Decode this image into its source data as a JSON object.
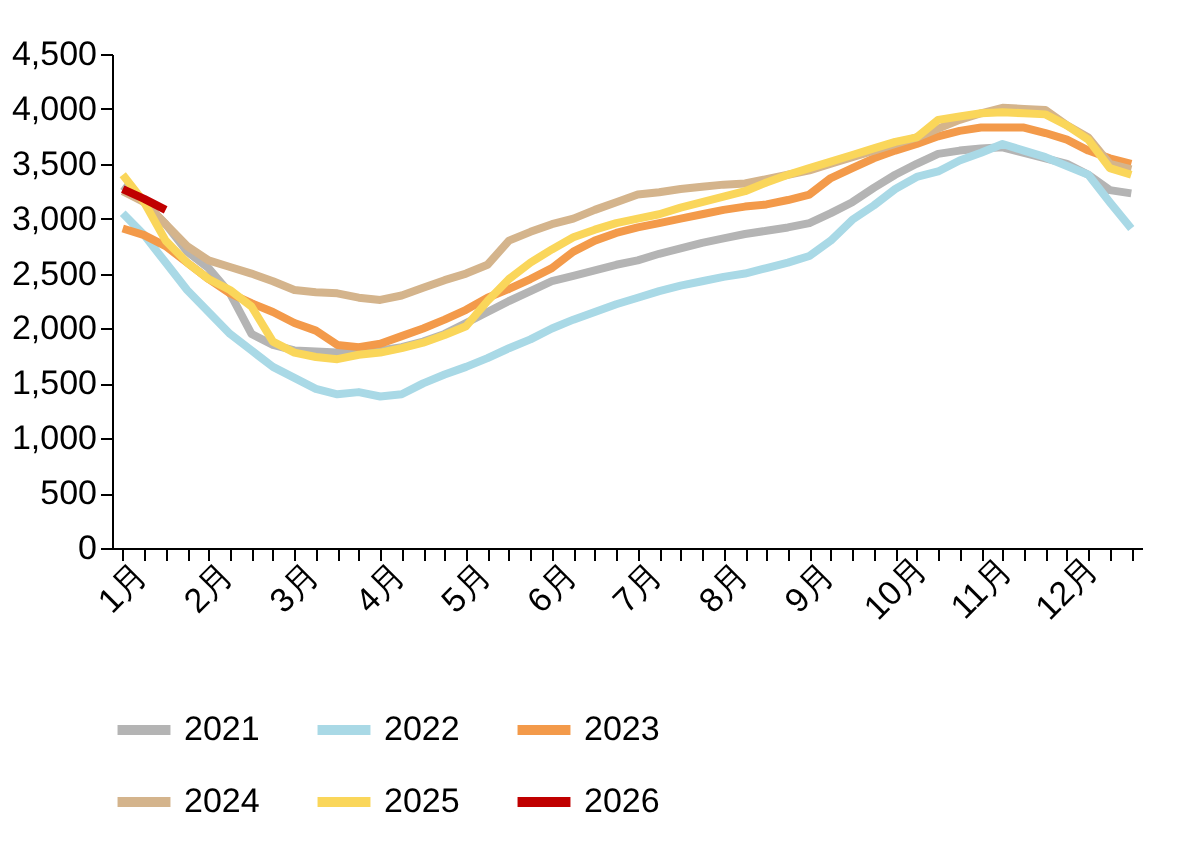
{
  "chart_data": {
    "type": "line",
    "categories": [
      "1月",
      null,
      null,
      null,
      "2月",
      null,
      null,
      null,
      "3月",
      null,
      null,
      null,
      "4月",
      null,
      null,
      null,
      "5月",
      null,
      null,
      null,
      "6月",
      null,
      null,
      null,
      "7月",
      null,
      null,
      null,
      "8月",
      null,
      null,
      null,
      "9月",
      null,
      null,
      null,
      "10月",
      null,
      null,
      null,
      "11月",
      null,
      null,
      null,
      "12月",
      null,
      null,
      null
    ],
    "ylim": [
      0,
      4500
    ],
    "yticks": [
      0,
      {
        "value": 500,
        "label": "500"
      },
      {
        "value": 1000,
        "label": "1,000"
      },
      {
        "value": 1500,
        "label": "1,500"
      },
      {
        "value": 2000,
        "label": "2,000"
      },
      {
        "value": 2500,
        "label": "2,500"
      },
      {
        "value": 3000,
        "label": "3,000"
      },
      {
        "value": 3500,
        "label": "3,500"
      },
      {
        "value": 4000,
        "label": "4,000"
      },
      {
        "value": 4500,
        "label": "4,500"
      }
    ],
    "grid": false,
    "legend": "bottom",
    "series": [
      {
        "name": "2021",
        "color": "#b4b4b4",
        "values": [
          3300,
          3150,
          2950,
          2700,
          2550,
          2320,
          1950,
          1850,
          1800,
          1790,
          1780,
          1790,
          1800,
          1830,
          1880,
          1950,
          2050,
          2150,
          2250,
          2340,
          2430,
          2480,
          2530,
          2580,
          2620,
          2680,
          2730,
          2780,
          2820,
          2860,
          2890,
          2920,
          2960,
          3050,
          3150,
          3280,
          3400,
          3500,
          3590,
          3620,
          3640,
          3650,
          3600,
          3550,
          3500,
          3400,
          3260,
          3230
        ]
      },
      {
        "name": "2022",
        "color": "#a9d9e6",
        "values": [
          3050,
          2850,
          2600,
          2350,
          2150,
          1950,
          1800,
          1650,
          1550,
          1450,
          1400,
          1420,
          1380,
          1400,
          1500,
          1580,
          1650,
          1730,
          1820,
          1900,
          2000,
          2080,
          2150,
          2220,
          2280,
          2340,
          2390,
          2430,
          2470,
          2500,
          2550,
          2600,
          2660,
          2800,
          2990,
          3120,
          3270,
          3380,
          3430,
          3530,
          3600,
          3680,
          3620,
          3560,
          3480,
          3400,
          3150,
          2910
        ]
      },
      {
        "name": "2023",
        "color": "#f39a4a",
        "values": [
          2910,
          2850,
          2750,
          2600,
          2450,
          2320,
          2230,
          2150,
          2050,
          1980,
          1850,
          1830,
          1860,
          1930,
          2000,
          2080,
          2170,
          2280,
          2360,
          2450,
          2550,
          2700,
          2800,
          2870,
          2920,
          2960,
          3000,
          3040,
          3080,
          3110,
          3130,
          3170,
          3220,
          3370,
          3460,
          3550,
          3620,
          3680,
          3750,
          3800,
          3830,
          3830,
          3830,
          3780,
          3720,
          3620,
          3550,
          3500
        ]
      },
      {
        "name": "2024",
        "color": "#d4b48c",
        "values": [
          3250,
          3150,
          2950,
          2750,
          2620,
          2560,
          2500,
          2430,
          2350,
          2330,
          2320,
          2280,
          2260,
          2300,
          2370,
          2440,
          2500,
          2580,
          2800,
          2880,
          2950,
          3000,
          3080,
          3150,
          3220,
          3240,
          3270,
          3290,
          3310,
          3320,
          3360,
          3400,
          3440,
          3500,
          3560,
          3620,
          3680,
          3740,
          3820,
          3900,
          3960,
          4010,
          4000,
          3990,
          3850,
          3740,
          3500,
          3450
        ]
      },
      {
        "name": "2025",
        "color": "#fad65a",
        "values": [
          3400,
          3150,
          2800,
          2600,
          2450,
          2350,
          2200,
          1880,
          1780,
          1740,
          1720,
          1760,
          1780,
          1820,
          1870,
          1940,
          2020,
          2250,
          2450,
          2600,
          2720,
          2830,
          2900,
          2960,
          3000,
          3040,
          3100,
          3150,
          3200,
          3250,
          3330,
          3400,
          3460,
          3520,
          3580,
          3640,
          3700,
          3740,
          3900,
          3930,
          3960,
          3970,
          3960,
          3950,
          3850,
          3720,
          3460,
          3400
        ]
      },
      {
        "name": "2026",
        "color": "#c00000",
        "values": [
          3270,
          3180,
          3080,
          null,
          null,
          null,
          null,
          null,
          null,
          null,
          null,
          null,
          null,
          null,
          null,
          null,
          null,
          null,
          null,
          null,
          null,
          null,
          null,
          null,
          null,
          null,
          null,
          null,
          null,
          null,
          null,
          null,
          null,
          null,
          null,
          null,
          null,
          null,
          null,
          null,
          null,
          null,
          null,
          null,
          null,
          null,
          null,
          null
        ]
      }
    ]
  }
}
